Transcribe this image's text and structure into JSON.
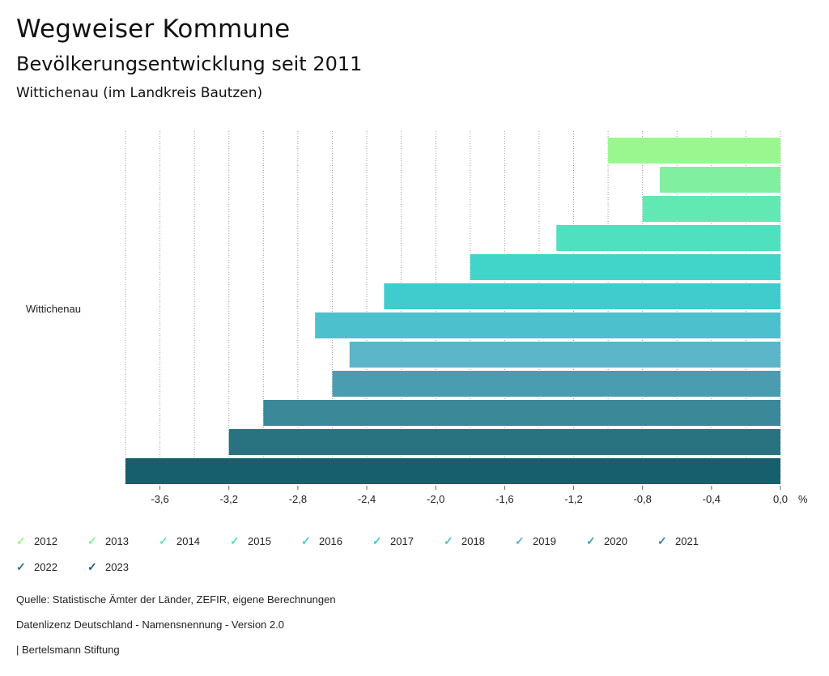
{
  "header": {
    "title": "Wegweiser Kommune",
    "subtitle": "Bevölkerungsentwicklung seit 2011",
    "region": "Wittichenau (im Landkreis Bautzen)"
  },
  "chart_data": {
    "type": "bar",
    "orientation": "horizontal",
    "categories": [
      "Wittichenau"
    ],
    "unit": "%",
    "xlim": [
      -3.8,
      0.0
    ],
    "xticks": [
      -3.6,
      -3.2,
      -2.8,
      -2.4,
      -2.0,
      -1.6,
      -1.2,
      -0.8,
      -0.4,
      0.0
    ],
    "xtick_labels": [
      "-3,6",
      "-3,2",
      "-2,8",
      "-2,4",
      "-2,0",
      "-1,6",
      "-1,2",
      "-0,8",
      "-0,4",
      "0,0"
    ],
    "grid": true,
    "series": [
      {
        "name": "2012",
        "values": [
          -1.0
        ],
        "color": "#9af78f"
      },
      {
        "name": "2013",
        "values": [
          -0.7
        ],
        "color": "#80f0a0"
      },
      {
        "name": "2014",
        "values": [
          -0.8
        ],
        "color": "#62e8b2"
      },
      {
        "name": "2015",
        "values": [
          -1.3
        ],
        "color": "#4fe0c0"
      },
      {
        "name": "2016",
        "values": [
          -1.8
        ],
        "color": "#40d5c8"
      },
      {
        "name": "2017",
        "values": [
          -2.3
        ],
        "color": "#40cccc"
      },
      {
        "name": "2018",
        "values": [
          -2.7
        ],
        "color": "#4cc0cc"
      },
      {
        "name": "2019",
        "values": [
          -2.5
        ],
        "color": "#5cb5c8"
      },
      {
        "name": "2020",
        "values": [
          -2.6
        ],
        "color": "#4a9db0"
      },
      {
        "name": "2021",
        "values": [
          -3.0
        ],
        "color": "#3b8898"
      },
      {
        "name": "2022",
        "values": [
          -3.2
        ],
        "color": "#29727f"
      },
      {
        "name": "2023",
        "values": [
          -3.8
        ],
        "color": "#185f6e"
      }
    ]
  },
  "footer": {
    "source": "Quelle: Statistische Ämter der Länder, ZEFIR, eigene Berechnungen",
    "license": "Datenlizenz Deutschland - Namensnennung - Version 2.0",
    "credit": "| Bertelsmann Stiftung"
  }
}
